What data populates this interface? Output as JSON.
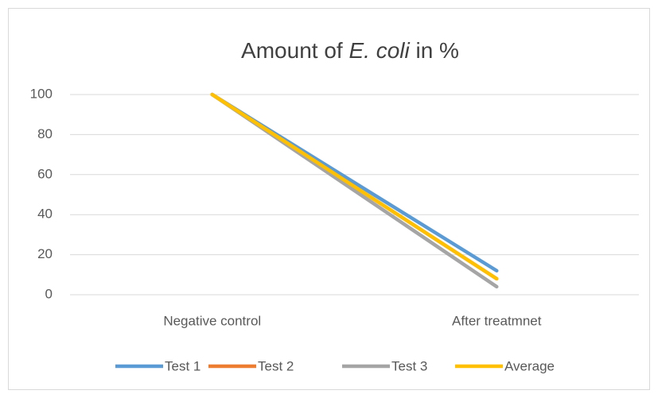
{
  "chart_data": {
    "type": "line",
    "title": "Amount of E. coli in %",
    "title_italic": "E. coli",
    "categories": [
      "Negative control",
      "After treatmnet"
    ],
    "series": [
      {
        "name": "Test 1",
        "color": "#5b9bd5",
        "values": [
          100,
          12
        ]
      },
      {
        "name": "Test 2",
        "color": "#ed7d31",
        "values": [
          100,
          8
        ]
      },
      {
        "name": "Test 3",
        "color": "#a5a5a5",
        "values": [
          100,
          4
        ]
      },
      {
        "name": "Average",
        "color": "#ffc000",
        "values": [
          100,
          8
        ]
      }
    ],
    "ylim": [
      0,
      100
    ],
    "yticks": [
      0,
      20,
      40,
      60,
      80,
      100
    ],
    "grid": true,
    "legend": "bottom"
  }
}
